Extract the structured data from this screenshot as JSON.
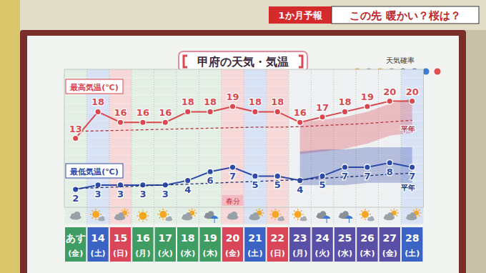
{
  "header": {
    "tag": "1か月予報",
    "headline": "この先 暖かい？桜は？",
    "legend_title": "天気確率"
  },
  "chart_data": {
    "type": "line",
    "title": "甲府の天気・気温",
    "categories": [
      "あす",
      "14",
      "15",
      "16",
      "17",
      "18",
      "19",
      "20",
      "21",
      "22",
      "23",
      "24",
      "25",
      "26",
      "27",
      "28"
    ],
    "weekdays": [
      "(金)",
      "(土)",
      "(日)",
      "(月)",
      "(火)",
      "(水)",
      "(木)",
      "(金)",
      "(土)",
      "(日)",
      "(月)",
      "(火)",
      "(水)",
      "(木)",
      "(金)",
      "(土)"
    ],
    "ylim": [
      0,
      26
    ],
    "y2lim": [
      -2,
      29
    ],
    "tick_labels": false,
    "data_labels": true,
    "series": [
      {
        "name": "最高気温(℃)",
        "color": "#d9474f",
        "marker": "circle",
        "line_style": "solid",
        "values": [
          13,
          18,
          16,
          16,
          16,
          18,
          18,
          19,
          18,
          18,
          16,
          17,
          18,
          19,
          20,
          20
        ],
        "band_low": [
          null,
          null,
          null,
          null,
          null,
          null,
          null,
          null,
          null,
          null,
          10,
          10.5,
          11,
          12,
          13.5,
          14
        ],
        "band_high": [
          null,
          null,
          null,
          null,
          null,
          null,
          null,
          null,
          null,
          null,
          16,
          16.5,
          17,
          18,
          19.5,
          20.5
        ]
      },
      {
        "name": "平年",
        "color": "#b8323a",
        "line_style": "dashed",
        "values": [
          14.3,
          14.4,
          14.5,
          14.6,
          14.7,
          14.8,
          14.9,
          15.0,
          15.1,
          15.1,
          15.2,
          15.4,
          15.6,
          15.8,
          16.1,
          16.4
        ]
      },
      {
        "name": "最低気温(℃)",
        "color": "#2d4aa8",
        "marker": "circle",
        "line_style": "solid",
        "axis": "y2",
        "values": [
          2,
          3,
          3,
          3,
          3,
          4,
          6,
          7,
          5,
          5,
          4,
          5,
          7,
          7,
          8,
          7
        ],
        "band_low": [
          null,
          null,
          null,
          null,
          null,
          null,
          null,
          null,
          null,
          null,
          3,
          3,
          3,
          3.5,
          3.5,
          3.5
        ],
        "band_high": [
          null,
          null,
          null,
          null,
          null,
          null,
          null,
          null,
          null,
          null,
          10.5,
          11,
          11,
          11.5,
          11.5,
          11.5
        ]
      },
      {
        "name": "平年",
        "color": "#1f2f70",
        "line_style": "dashed",
        "axis": "y2",
        "values": [
          2.2,
          2.4,
          2.6,
          2.8,
          3.0,
          3.2,
          3.4,
          3.6,
          3.8,
          4.0,
          4.2,
          4.5,
          4.8,
          5.1,
          5.4,
          5.7
        ]
      }
    ],
    "annotations": [
      {
        "text": "春分",
        "category": "20"
      }
    ]
  }
}
